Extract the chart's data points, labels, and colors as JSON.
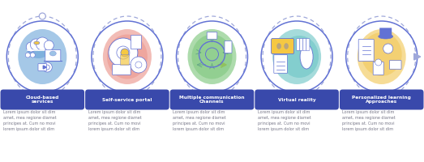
{
  "steps": [
    {
      "title": "Cloud-based\nservices",
      "icon_bg": "#5b9bd5",
      "icon_bg2": "#aec9f0"
    },
    {
      "title": "Self-service portal",
      "icon_bg": "#e8857a",
      "icon_bg2": "#f5b8b3"
    },
    {
      "title": "Multiple communication\nChannels",
      "icon_bg": "#6abf69",
      "icon_bg2": "#a8dba7"
    },
    {
      "title": "Virtual reality",
      "icon_bg": "#5bbfbf",
      "icon_bg2": "#9adada"
    },
    {
      "title": "Personalized learning\nApproaches",
      "icon_bg": "#f0c040",
      "icon_bg2": "#f8dfa0"
    }
  ],
  "lorem_lines": [
    "Lorem ipsum dolor sit dim",
    "amet, mea regione diamet",
    "principes at. Cum no movi",
    "lorem ipsum dolor sit dim"
  ],
  "bg_color": "#ffffff",
  "circle_outline": "#6272d4",
  "dashed_outline": "#9fa8da",
  "label_bg": "#3949ab",
  "label_text": "#ffffff",
  "body_text": "#777788",
  "n_steps": 5,
  "icon_lines": [
    "#6272d4",
    "#f5c842",
    "#e87060",
    "#5b9bd5"
  ],
  "fig_w": 5.23,
  "fig_h": 2.0,
  "dpi": 100
}
